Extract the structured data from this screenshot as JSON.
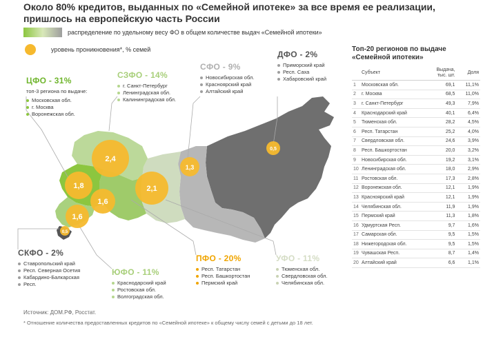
{
  "title": {
    "line1": "Около 80% кредитов, выданных по «Семейной ипотеке» за все время ее реализации,",
    "line2": "пришлось на европейскую часть России"
  },
  "legend": {
    "gradient_label": "распределение по удельному весу ФО в общем количестве выдач «Семейной ипотеки»",
    "dot_label": "уровень проникновения*, % семей",
    "colors": {
      "high": "#8cc63f",
      "low": "#9e9e9e",
      "bubble": "#f6b92e"
    }
  },
  "districts": {
    "cfo": {
      "title": "ЦФО - 31%",
      "subtitle": "топ-3 региона по выдаче:",
      "regions": [
        "Московская обл.",
        "г. Москва",
        "Воронежская обл."
      ]
    },
    "szfo": {
      "title": "СЗФО - 14%",
      "regions": [
        "г. Санкт-Петербург",
        "Ленинградская обл.",
        "Калининградская обл."
      ]
    },
    "sfo": {
      "title": "СФО - 9%",
      "regions": [
        "Новосибирская обл.",
        "Красноярский край",
        "Алтайский край"
      ]
    },
    "dfo": {
      "title": "ДФО - 2%",
      "regions": [
        "Приморский край",
        "Респ. Саха",
        "Хабаровский край"
      ]
    },
    "skfo": {
      "title": "СКФО - 2%",
      "regions": [
        "Ставропольский край",
        "Респ. Северная Осетия",
        "Кабардино-Балкарская",
        "Респ."
      ]
    },
    "ufo_south": {
      "title": "ЮФО - 11%",
      "regions": [
        "Краснодарский край",
        "Ростовская обл.",
        "Волгоградская обл."
      ]
    },
    "pfo": {
      "title": "ПФО - 20%",
      "regions": [
        "Респ. Татарстан",
        "Респ. Башкортостан",
        "Пермский край"
      ]
    },
    "ufo_ural": {
      "title": "УФО - 11%",
      "regions": [
        "Тюменская обл.",
        "Свердловская обл.",
        "Челябинская обл."
      ]
    }
  },
  "bubbles": [
    {
      "district": "ЦФО",
      "label": "1,8",
      "value": 1.8
    },
    {
      "district": "СЗФО",
      "label": "2,4",
      "value": 2.4
    },
    {
      "district": "ЮФО",
      "label": "1,6",
      "value": 1.6
    },
    {
      "district": "ПФО",
      "label": "1,6",
      "value": 1.6
    },
    {
      "district": "УФО",
      "label": "2,1",
      "value": 2.1
    },
    {
      "district": "СФО",
      "label": "1,3",
      "value": 1.3
    },
    {
      "district": "ДФО",
      "label": "0,5",
      "value": 0.5
    },
    {
      "district": "СКФО",
      "label": "0,5",
      "value": 0.5
    }
  ],
  "top20": {
    "title_line1": "Топ-20 регионов по выдаче",
    "title_line2": "«Семейной ипотеки»",
    "headers": {
      "subject": "Субъект",
      "issued": "Выдача, тыс. шт.",
      "share": "Доля"
    },
    "rows": [
      [
        "1",
        "Московская обл.",
        "69,1",
        "11,1%"
      ],
      [
        "2",
        "г. Москва",
        "68,5",
        "11,0%"
      ],
      [
        "3",
        "г. Санкт-Петербург",
        "49,3",
        "7,9%"
      ],
      [
        "4",
        "Краснодарский край",
        "40,1",
        "6,4%"
      ],
      [
        "5",
        "Тюменская обл.",
        "28,2",
        "4,5%"
      ],
      [
        "6",
        "Респ. Татарстан",
        "25,2",
        "4,0%"
      ],
      [
        "7",
        "Свердловская обл.",
        "24,6",
        "3,9%"
      ],
      [
        "8",
        "Респ. Башкортостан",
        "20,0",
        "3,2%"
      ],
      [
        "9",
        "Новосибирская обл.",
        "19,2",
        "3,1%"
      ],
      [
        "10",
        "Ленинградская обл.",
        "18,0",
        "2,9%"
      ],
      [
        "11",
        "Ростовская обл.",
        "17,3",
        "2,8%"
      ],
      [
        "12",
        "Воронежская обл.",
        "12,1",
        "1,9%"
      ],
      [
        "13",
        "Красноярский край",
        "12,1",
        "1,9%"
      ],
      [
        "14",
        "Челябинская обл.",
        "11,9",
        "1,9%"
      ],
      [
        "15",
        "Пермский край",
        "11,3",
        "1,8%"
      ],
      [
        "16",
        "Удмуртская Респ.",
        "9,7",
        "1,6%"
      ],
      [
        "17",
        "Самарская обл.",
        "9,5",
        "1,5%"
      ],
      [
        "18",
        "Нижегородская обл.",
        "9,5",
        "1,5%"
      ],
      [
        "19",
        "Чувашская Респ.",
        "8,7",
        "1,4%"
      ],
      [
        "20",
        "Алтайский край",
        "6,6",
        "1,1%"
      ]
    ]
  },
  "source": "Источник: ДОМ.РФ, Росстат.",
  "footnote": "* Отношение количества предоставленных кредитов по «Семейной ипотеке» к общему числу семей с детьми до 18 лет."
}
